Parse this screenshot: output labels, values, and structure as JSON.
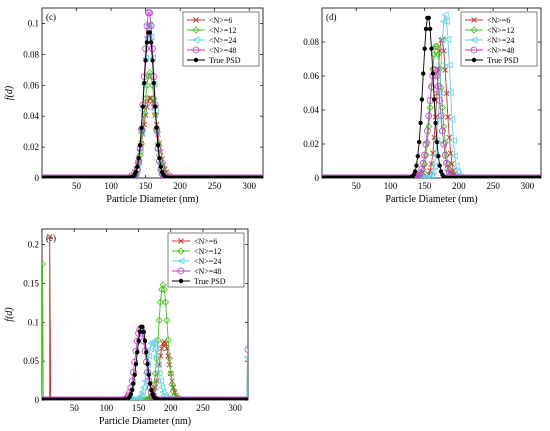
{
  "chart_data": [
    {
      "type": "line",
      "panel_label": "(c)",
      "xlabel": "Particle Diameter (nm)",
      "ylabel": "f(d)",
      "xlim": [
        0,
        320
      ],
      "ylim": [
        0,
        0.11
      ],
      "xticks": [
        50,
        100,
        150,
        200,
        250,
        300
      ],
      "xtick_labels": [
        "50",
        "100",
        "150",
        "200",
        "250",
        "300"
      ],
      "yticks": [
        0,
        0.02,
        0.04,
        0.06,
        0.08,
        0.1
      ],
      "ytick_labels": [
        "0",
        "0.02",
        "0.04",
        "0.06",
        "0.08",
        "0.1"
      ],
      "legend_position": "top-right",
      "series": [
        {
          "name": "<N>=6",
          "color": "#c0392b",
          "marker": "x",
          "gaussian": {
            "mu": 157,
            "sigma": 10,
            "amp": 0.052
          }
        },
        {
          "name": "<N>=12",
          "color": "#49c21e",
          "marker": "diamond",
          "gaussian": {
            "mu": 156,
            "sigma": 8,
            "amp": 0.068
          }
        },
        {
          "name": "<N>=24",
          "color": "#5fd3e8",
          "marker": "triangle-left",
          "gaussian": {
            "mu": 155,
            "sigma": 7,
            "amp": 0.1
          }
        },
        {
          "name": "<N>=48",
          "color": "#c040c0",
          "marker": "circle",
          "gaussian": {
            "mu": 155,
            "sigma": 7,
            "amp": 0.108
          }
        },
        {
          "name": "True PSD",
          "color": "#000000",
          "marker": "star",
          "gaussian": {
            "mu": 155,
            "sigma": 7.5,
            "amp": 0.095
          }
        }
      ]
    },
    {
      "type": "line",
      "panel_label": "(d)",
      "xlabel": "Particle Diameter (nm)",
      "ylabel": "",
      "xlim": [
        0,
        320
      ],
      "ylim": [
        0,
        0.1
      ],
      "xticks": [
        50,
        100,
        150,
        200,
        250,
        300
      ],
      "xtick_labels": [
        "50",
        "100",
        "150",
        "200",
        "250",
        "300"
      ],
      "yticks": [
        0,
        0.02,
        0.04,
        0.06,
        0.08
      ],
      "ytick_labels": [
        "0",
        "0.02",
        "0.04",
        "0.06",
        "0.08"
      ],
      "legend_position": "top-right",
      "series": [
        {
          "name": "<N>=6",
          "color": "#c0392b",
          "marker": "x",
          "gaussian": {
            "mu": 175,
            "sigma": 7,
            "amp": 0.082
          }
        },
        {
          "name": "<N>=12",
          "color": "#49c21e",
          "marker": "diamond",
          "gaussian": {
            "mu": 167,
            "sigma": 8,
            "amp": 0.078
          }
        },
        {
          "name": "<N>=24",
          "color": "#5fd3e8",
          "marker": "triangle-left",
          "gaussian": {
            "mu": 180,
            "sigma": 7,
            "amp": 0.096
          }
        },
        {
          "name": "<N>=48",
          "color": "#c040c0",
          "marker": "circle",
          "gaussian": {
            "mu": 165,
            "sigma": 8.5,
            "amp": 0.064
          }
        },
        {
          "name": "True PSD",
          "color": "#000000",
          "marker": "star",
          "gaussian": {
            "mu": 155,
            "sigma": 7.5,
            "amp": 0.095
          }
        }
      ]
    },
    {
      "type": "line",
      "panel_label": "(e)",
      "xlabel": "Particle Diameter (nm)",
      "ylabel": "f(d)",
      "xlim": [
        0,
        320
      ],
      "ylim": [
        0,
        0.22
      ],
      "xticks": [
        50,
        100,
        150,
        200,
        250,
        300
      ],
      "xtick_labels": [
        "50",
        "100",
        "150",
        "200",
        "250",
        "300"
      ],
      "yticks": [
        0,
        0.05,
        0.1,
        0.15,
        0.2
      ],
      "ytick_labels": [
        "0",
        "0.05",
        "0.1",
        "0.15",
        "0.2"
      ],
      "legend_position": "top-right",
      "series": [
        {
          "name": "<N>=6",
          "color": "#c0392b",
          "marker": "x",
          "gaussian": {
            "mu": 190,
            "sigma": 8,
            "amp": 0.075
          },
          "spike": {
            "x": 12,
            "y": 0.21
          }
        },
        {
          "name": "<N>=12",
          "color": "#49c21e",
          "marker": "diamond",
          "gaussian": {
            "mu": 188,
            "sigma": 7,
            "amp": 0.148
          },
          "spike": {
            "x": 1,
            "y": 0.175
          }
        },
        {
          "name": "<N>=24",
          "color": "#5fd3e8",
          "marker": "triangle-left",
          "gaussian": {
            "mu": 172,
            "sigma": 8,
            "amp": 0.075
          },
          "spike": {
            "x": 319,
            "y": 0.055
          }
        },
        {
          "name": "<N>=48",
          "color": "#c040c0",
          "marker": "circle",
          "gaussian": {
            "mu": 153,
            "sigma": 8,
            "amp": 0.092
          },
          "spike": {
            "x": 320,
            "y": 0.065
          }
        },
        {
          "name": "True PSD",
          "color": "#000000",
          "marker": "star",
          "gaussian": {
            "mu": 155,
            "sigma": 7.5,
            "amp": 0.095
          }
        }
      ]
    }
  ]
}
